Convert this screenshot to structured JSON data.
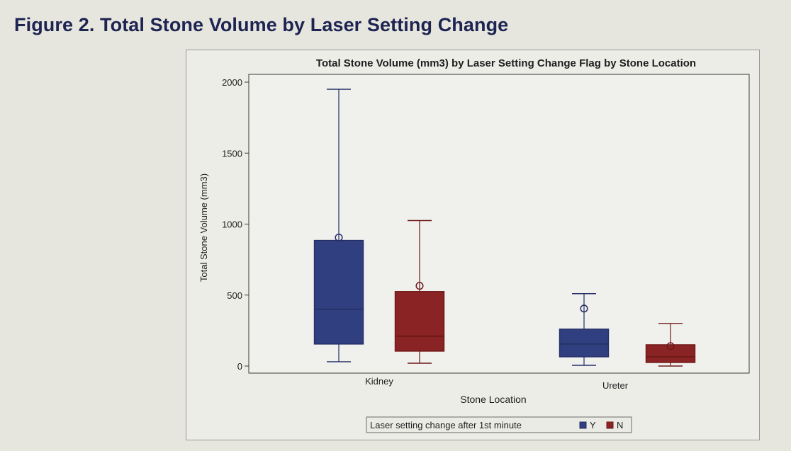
{
  "figure_heading": "Figure 2. Total Stone Volume by Laser Setting Change",
  "colors": {
    "series_y": "#303f80",
    "series_n": "#8a2323",
    "stroke_y": "#252f66",
    "stroke_n": "#6e1a1a"
  },
  "chart_data": {
    "type": "box",
    "title": "Total Stone Volume (mm3) by Laser Setting Change Flag by Stone Location",
    "xlabel": "Stone Location",
    "ylabel": "Total Stone Volume (mm3)",
    "ylim": [
      0,
      2000
    ],
    "yticks": [
      "0",
      "500",
      "1000",
      "1500",
      "2000"
    ],
    "categories": [
      "Kidney",
      "Ureter"
    ],
    "legend": {
      "title": "Laser setting change after 1st minute",
      "position": "bottom-center"
    },
    "series": [
      {
        "name": "Y",
        "boxes": [
          {
            "category": "Kidney",
            "min": 30,
            "q1": 155,
            "median": 400,
            "q3": 885,
            "max": 1950,
            "mean": 905
          },
          {
            "category": "Ureter",
            "min": 5,
            "q1": 65,
            "median": 155,
            "q3": 260,
            "max": 510,
            "mean": 405
          }
        ]
      },
      {
        "name": "N",
        "boxes": [
          {
            "category": "Kidney",
            "min": 20,
            "q1": 105,
            "median": 210,
            "q3": 525,
            "max": 1025,
            "mean": 565
          },
          {
            "category": "Ureter",
            "min": 0,
            "q1": 25,
            "median": 65,
            "q3": 150,
            "max": 300,
            "mean": 140
          }
        ]
      }
    ]
  }
}
